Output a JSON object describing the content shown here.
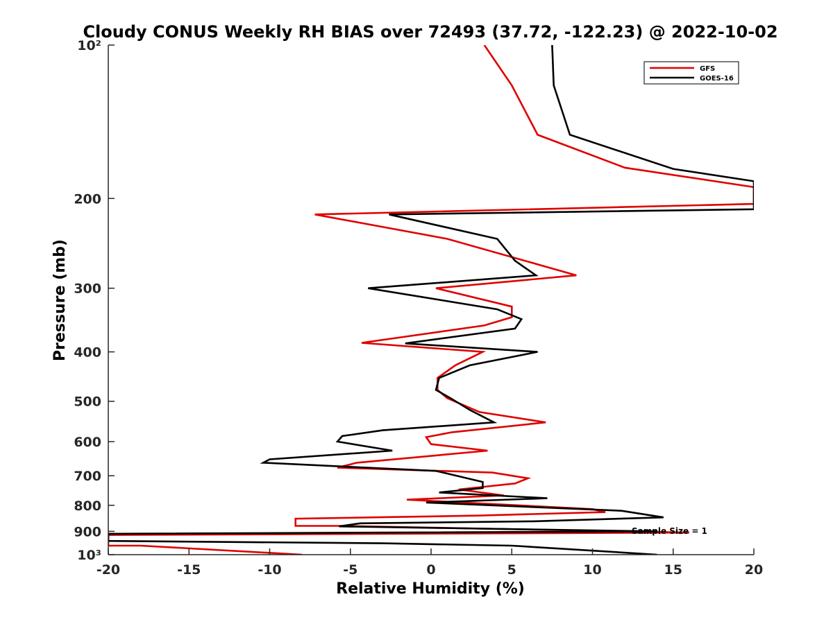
{
  "chart_data": {
    "type": "line",
    "title": "Cloudy CONUS Weekly RH BIAS over 72493 (37.72, -122.23) @ 2022-10-02",
    "xlabel": "Relative Humidity (%)",
    "ylabel": "Pressure (mb)",
    "xlim": [
      -20,
      20
    ],
    "ylim": [
      100,
      1000
    ],
    "y_scale": "log",
    "y_reversed": true,
    "grid": false,
    "legend_position": "top-right",
    "x_ticks": [
      -20,
      -15,
      -10,
      -5,
      0,
      5,
      10,
      15,
      20
    ],
    "x_tick_labels": [
      "-20",
      "-15",
      "-10",
      "-5",
      "0",
      "5",
      "10",
      "15",
      "20"
    ],
    "y_ticks": [
      100,
      200,
      300,
      400,
      500,
      600,
      700,
      800,
      900,
      1000
    ],
    "y_tick_labels": [
      "10²",
      "200",
      "300",
      "400",
      "500",
      "600",
      "700",
      "800",
      "900",
      "10³"
    ],
    "annotation": "Sample Size = 1",
    "colors": {
      "GFS": "#e00000",
      "GOES-16": "#000000"
    },
    "series": [
      {
        "name": "GFS",
        "color": "#e00000",
        "points": [
          [
            3.3,
            100
          ],
          [
            5,
            120
          ],
          [
            6.6,
            150
          ],
          [
            12,
            174
          ],
          [
            20,
            190
          ],
          [
            20,
            205
          ],
          [
            -7.2,
            215
          ],
          [
            1,
            240
          ],
          [
            9,
            283
          ],
          [
            0.3,
            300
          ],
          [
            5,
            326
          ],
          [
            5,
            342
          ],
          [
            3.3,
            355
          ],
          [
            -4.3,
            384
          ],
          [
            3.2,
            400
          ],
          [
            1.5,
            425
          ],
          [
            0.4,
            450
          ],
          [
            0.4,
            475
          ],
          [
            1,
            493
          ],
          [
            3,
            525
          ],
          [
            7.1,
            550
          ],
          [
            1.3,
            575
          ],
          [
            -0.3,
            588
          ],
          [
            0,
            607
          ],
          [
            3.5,
            625
          ],
          [
            -4.6,
            660
          ],
          [
            -5.8,
            675
          ],
          [
            3.8,
            690
          ],
          [
            6,
            708
          ],
          [
            5.2,
            725
          ],
          [
            1.7,
            745
          ],
          [
            4.5,
            765
          ],
          [
            -1.5,
            780
          ],
          [
            10,
            814
          ],
          [
            10.8,
            825
          ],
          [
            3,
            838
          ],
          [
            -8.4,
            850
          ],
          [
            -8.4,
            878
          ],
          [
            -5.6,
            878
          ],
          [
            12,
            900
          ],
          [
            16,
            905
          ],
          [
            -20,
            915
          ],
          [
            -20,
            960
          ],
          [
            -18,
            960
          ],
          [
            -8,
            1000
          ]
        ]
      },
      {
        "name": "GOES-16",
        "color": "#000000",
        "points": [
          [
            7.5,
            100
          ],
          [
            7.6,
            120
          ],
          [
            8.6,
            150
          ],
          [
            15,
            175
          ],
          [
            20,
            185
          ],
          [
            20,
            210
          ],
          [
            -2.6,
            215
          ],
          [
            4.1,
            240
          ],
          [
            5.2,
            265
          ],
          [
            6.5,
            283
          ],
          [
            -3.9,
            300
          ],
          [
            4.1,
            330
          ],
          [
            5.6,
            345
          ],
          [
            5.2,
            360
          ],
          [
            -1.6,
            385
          ],
          [
            6.6,
            400
          ],
          [
            2.4,
            425
          ],
          [
            0.5,
            450
          ],
          [
            0.3,
            475
          ],
          [
            1.2,
            493
          ],
          [
            2.4,
            520
          ],
          [
            3.9,
            550
          ],
          [
            -3,
            570
          ],
          [
            -5.5,
            585
          ],
          [
            -5.8,
            600
          ],
          [
            -2.4,
            625
          ],
          [
            -10,
            650
          ],
          [
            -10.4,
            660
          ],
          [
            0.3,
            685
          ],
          [
            3.2,
            720
          ],
          [
            3.2,
            740
          ],
          [
            0.5,
            755
          ],
          [
            7.2,
            775
          ],
          [
            -0.3,
            790
          ],
          [
            11.8,
            820
          ],
          [
            14.4,
            845
          ],
          [
            6.3,
            860
          ],
          [
            -4.4,
            868
          ],
          [
            -5.7,
            880
          ],
          [
            14,
            900
          ],
          [
            -20,
            910
          ],
          [
            -20,
            940
          ],
          [
            -3,
            950
          ],
          [
            5,
            960
          ],
          [
            14,
            1000
          ]
        ]
      }
    ]
  }
}
